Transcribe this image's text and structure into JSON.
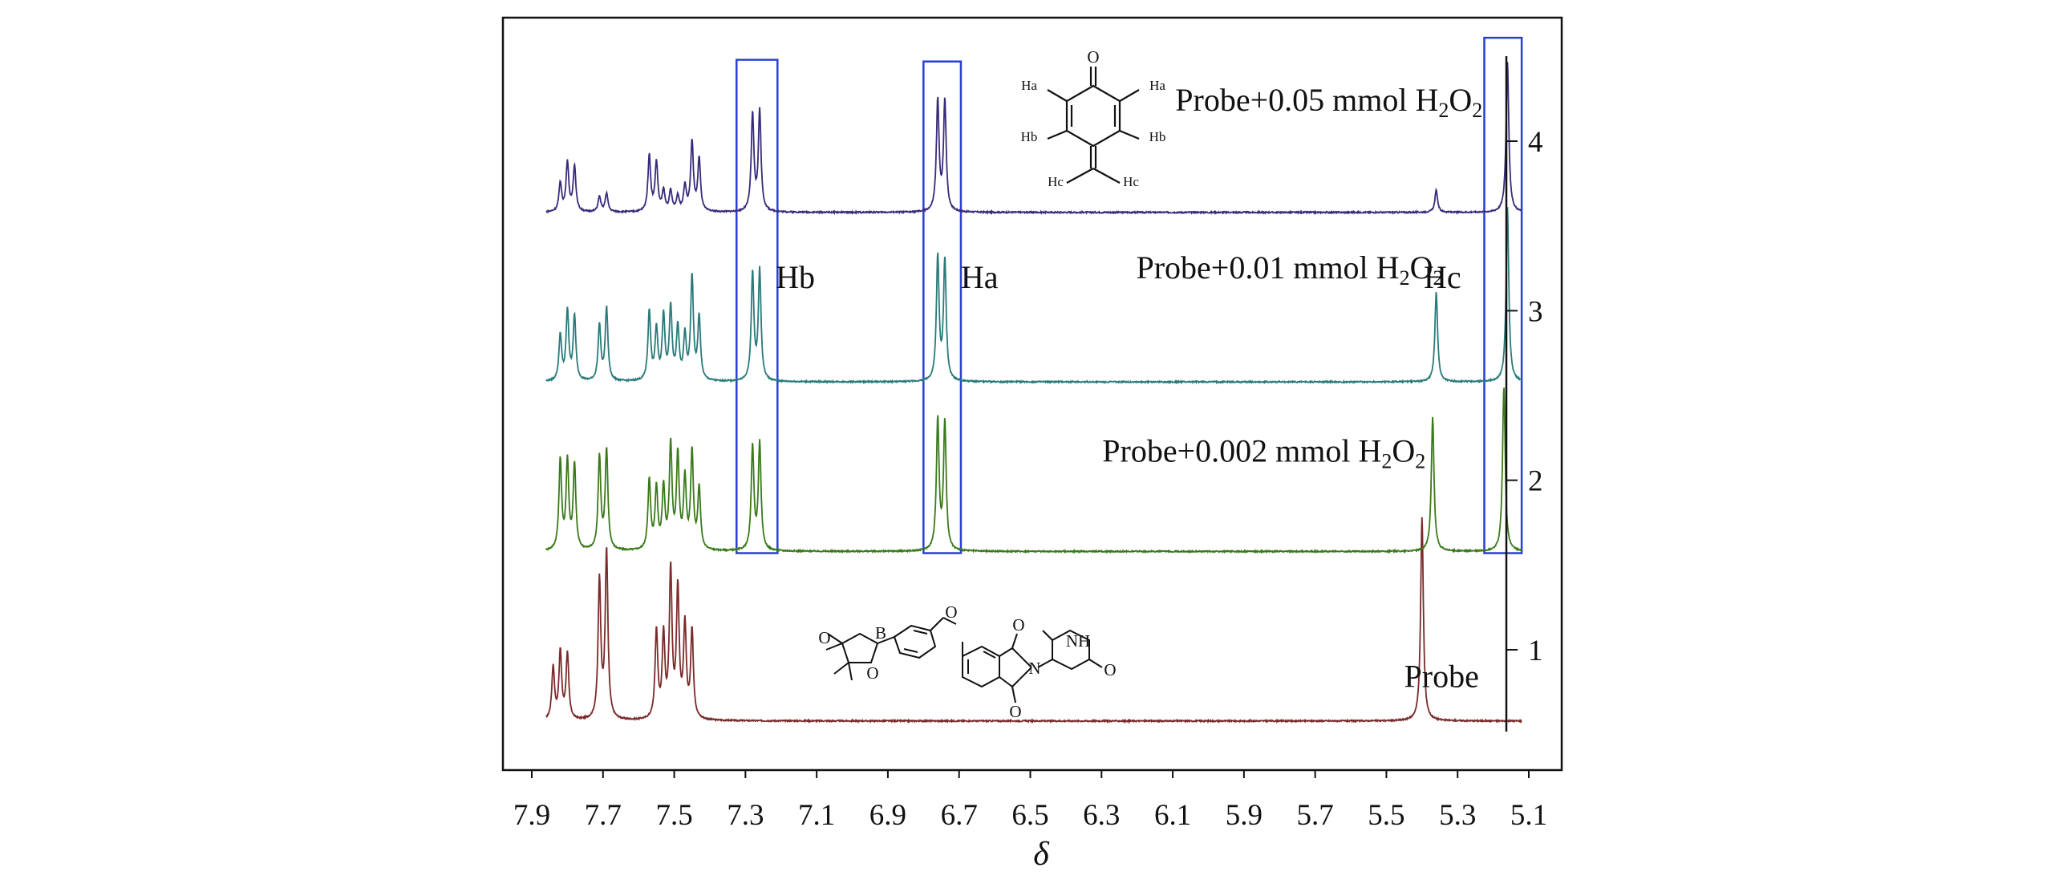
{
  "chart_data": {
    "type": "line",
    "title": "",
    "xlabel": "δ",
    "ylabel": "",
    "xlim": [
      7.95,
      5.05
    ],
    "ylim": [
      0.5,
      4.6
    ],
    "x_ticks": [
      "7.9",
      "7.7",
      "7.5",
      "7.3",
      "7.1",
      "6.9",
      "6.7",
      "6.5",
      "6.3",
      "6.1",
      "5.9",
      "5.7",
      "5.5",
      "5.3",
      "5.1"
    ],
    "y_ticks": [
      "1",
      "2",
      "3",
      "4"
    ],
    "series": [
      {
        "name": "Probe",
        "label_parts": [
          "Probe"
        ],
        "color": "#7a2a2a",
        "baseline": 0.58,
        "peaks": [
          {
            "x": 7.84,
            "h": 0.31
          },
          {
            "x": 7.82,
            "h": 0.4
          },
          {
            "x": 7.8,
            "h": 0.39
          },
          {
            "x": 7.71,
            "h": 0.82
          },
          {
            "x": 7.69,
            "h": 0.99
          },
          {
            "x": 7.55,
            "h": 0.52
          },
          {
            "x": 7.53,
            "h": 0.48
          },
          {
            "x": 7.51,
            "h": 0.87
          },
          {
            "x": 7.49,
            "h": 0.76
          },
          {
            "x": 7.47,
            "h": 0.55
          },
          {
            "x": 7.45,
            "h": 0.52
          },
          {
            "x": 5.4,
            "h": 1.2
          }
        ]
      },
      {
        "name": "Probe+0.002 mmol H2O2",
        "label_parts": [
          "Probe+0.002 mmol H",
          "2",
          "O",
          "2"
        ],
        "color": "#3a7a1a",
        "baseline": 1.58,
        "peaks": [
          {
            "x": 7.82,
            "h": 0.53
          },
          {
            "x": 7.8,
            "h": 0.52
          },
          {
            "x": 7.78,
            "h": 0.5
          },
          {
            "x": 7.71,
            "h": 0.55
          },
          {
            "x": 7.69,
            "h": 0.59
          },
          {
            "x": 7.57,
            "h": 0.41
          },
          {
            "x": 7.55,
            "h": 0.36
          },
          {
            "x": 7.53,
            "h": 0.36
          },
          {
            "x": 7.51,
            "h": 0.61
          },
          {
            "x": 7.49,
            "h": 0.55
          },
          {
            "x": 7.47,
            "h": 0.41
          },
          {
            "x": 7.45,
            "h": 0.57
          },
          {
            "x": 7.43,
            "h": 0.36
          },
          {
            "x": 7.28,
            "h": 0.61
          },
          {
            "x": 7.26,
            "h": 0.63
          },
          {
            "x": 6.76,
            "h": 0.77
          },
          {
            "x": 6.74,
            "h": 0.75
          },
          {
            "x": 5.37,
            "h": 0.79
          },
          {
            "x": 5.17,
            "h": 0.97
          }
        ]
      },
      {
        "name": "Probe+0.01 mmol H2O2",
        "label_parts": [
          "Probe+0.01 mmol H",
          "2",
          "O",
          "2"
        ],
        "color": "#2a7a7a",
        "baseline": 2.58,
        "peaks": [
          {
            "x": 7.82,
            "h": 0.27
          },
          {
            "x": 7.8,
            "h": 0.41
          },
          {
            "x": 7.78,
            "h": 0.38
          },
          {
            "x": 7.71,
            "h": 0.33
          },
          {
            "x": 7.69,
            "h": 0.43
          },
          {
            "x": 7.57,
            "h": 0.41
          },
          {
            "x": 7.55,
            "h": 0.3
          },
          {
            "x": 7.53,
            "h": 0.38
          },
          {
            "x": 7.51,
            "h": 0.43
          },
          {
            "x": 7.49,
            "h": 0.31
          },
          {
            "x": 7.47,
            "h": 0.26
          },
          {
            "x": 7.45,
            "h": 0.61
          },
          {
            "x": 7.43,
            "h": 0.37
          },
          {
            "x": 7.28,
            "h": 0.63
          },
          {
            "x": 7.26,
            "h": 0.65
          },
          {
            "x": 6.76,
            "h": 0.73
          },
          {
            "x": 6.74,
            "h": 0.71
          },
          {
            "x": 5.36,
            "h": 0.53
          },
          {
            "x": 5.16,
            "h": 1.03
          }
        ]
      },
      {
        "name": "Probe+0.05 mmol H2O2",
        "label_parts": [
          "Probe+0.05 mmol H",
          "2",
          "O",
          "2"
        ],
        "color": "#3a2a7a",
        "baseline": 3.58,
        "peaks": [
          {
            "x": 7.82,
            "h": 0.17
          },
          {
            "x": 7.8,
            "h": 0.29
          },
          {
            "x": 7.78,
            "h": 0.27
          },
          {
            "x": 7.71,
            "h": 0.09
          },
          {
            "x": 7.69,
            "h": 0.11
          },
          {
            "x": 7.57,
            "h": 0.33
          },
          {
            "x": 7.55,
            "h": 0.29
          },
          {
            "x": 7.53,
            "h": 0.12
          },
          {
            "x": 7.51,
            "h": 0.12
          },
          {
            "x": 7.49,
            "h": 0.09
          },
          {
            "x": 7.47,
            "h": 0.15
          },
          {
            "x": 7.45,
            "h": 0.41
          },
          {
            "x": 7.43,
            "h": 0.31
          },
          {
            "x": 7.28,
            "h": 0.57
          },
          {
            "x": 7.26,
            "h": 0.59
          },
          {
            "x": 6.76,
            "h": 0.65
          },
          {
            "x": 6.74,
            "h": 0.65
          },
          {
            "x": 5.36,
            "h": 0.13
          },
          {
            "x": 5.16,
            "h": 0.89
          }
        ]
      }
    ],
    "annotations": [
      {
        "text": "Hb",
        "x": 7.215,
        "y": 3.2
      },
      {
        "text": "Ha",
        "x": 6.695,
        "y": 3.2
      },
      {
        "text": "Hc",
        "x": 5.395,
        "y": 3.2
      }
    ],
    "highlight_boxes": [
      {
        "x_from": 7.325,
        "x_to": 7.21,
        "y_from": 1.57,
        "y_to": 4.48,
        "color": "#2b3fd4"
      },
      {
        "x_from": 6.8,
        "x_to": 6.695,
        "y_from": 1.57,
        "y_to": 4.47,
        "color": "#2b3fd4"
      },
      {
        "x_from": 5.225,
        "x_to": 5.12,
        "y_from": 1.57,
        "y_to": 4.61,
        "color": "#2b3fd4"
      }
    ],
    "molecule_labels": {
      "quinone_methide": [
        "O",
        "Ha",
        "Ha",
        "Hb",
        "Hb",
        "Hc",
        "Hc"
      ],
      "probe": [
        "O",
        "B",
        "O",
        "O",
        "O",
        "N",
        "O",
        "NH",
        "O"
      ]
    }
  }
}
